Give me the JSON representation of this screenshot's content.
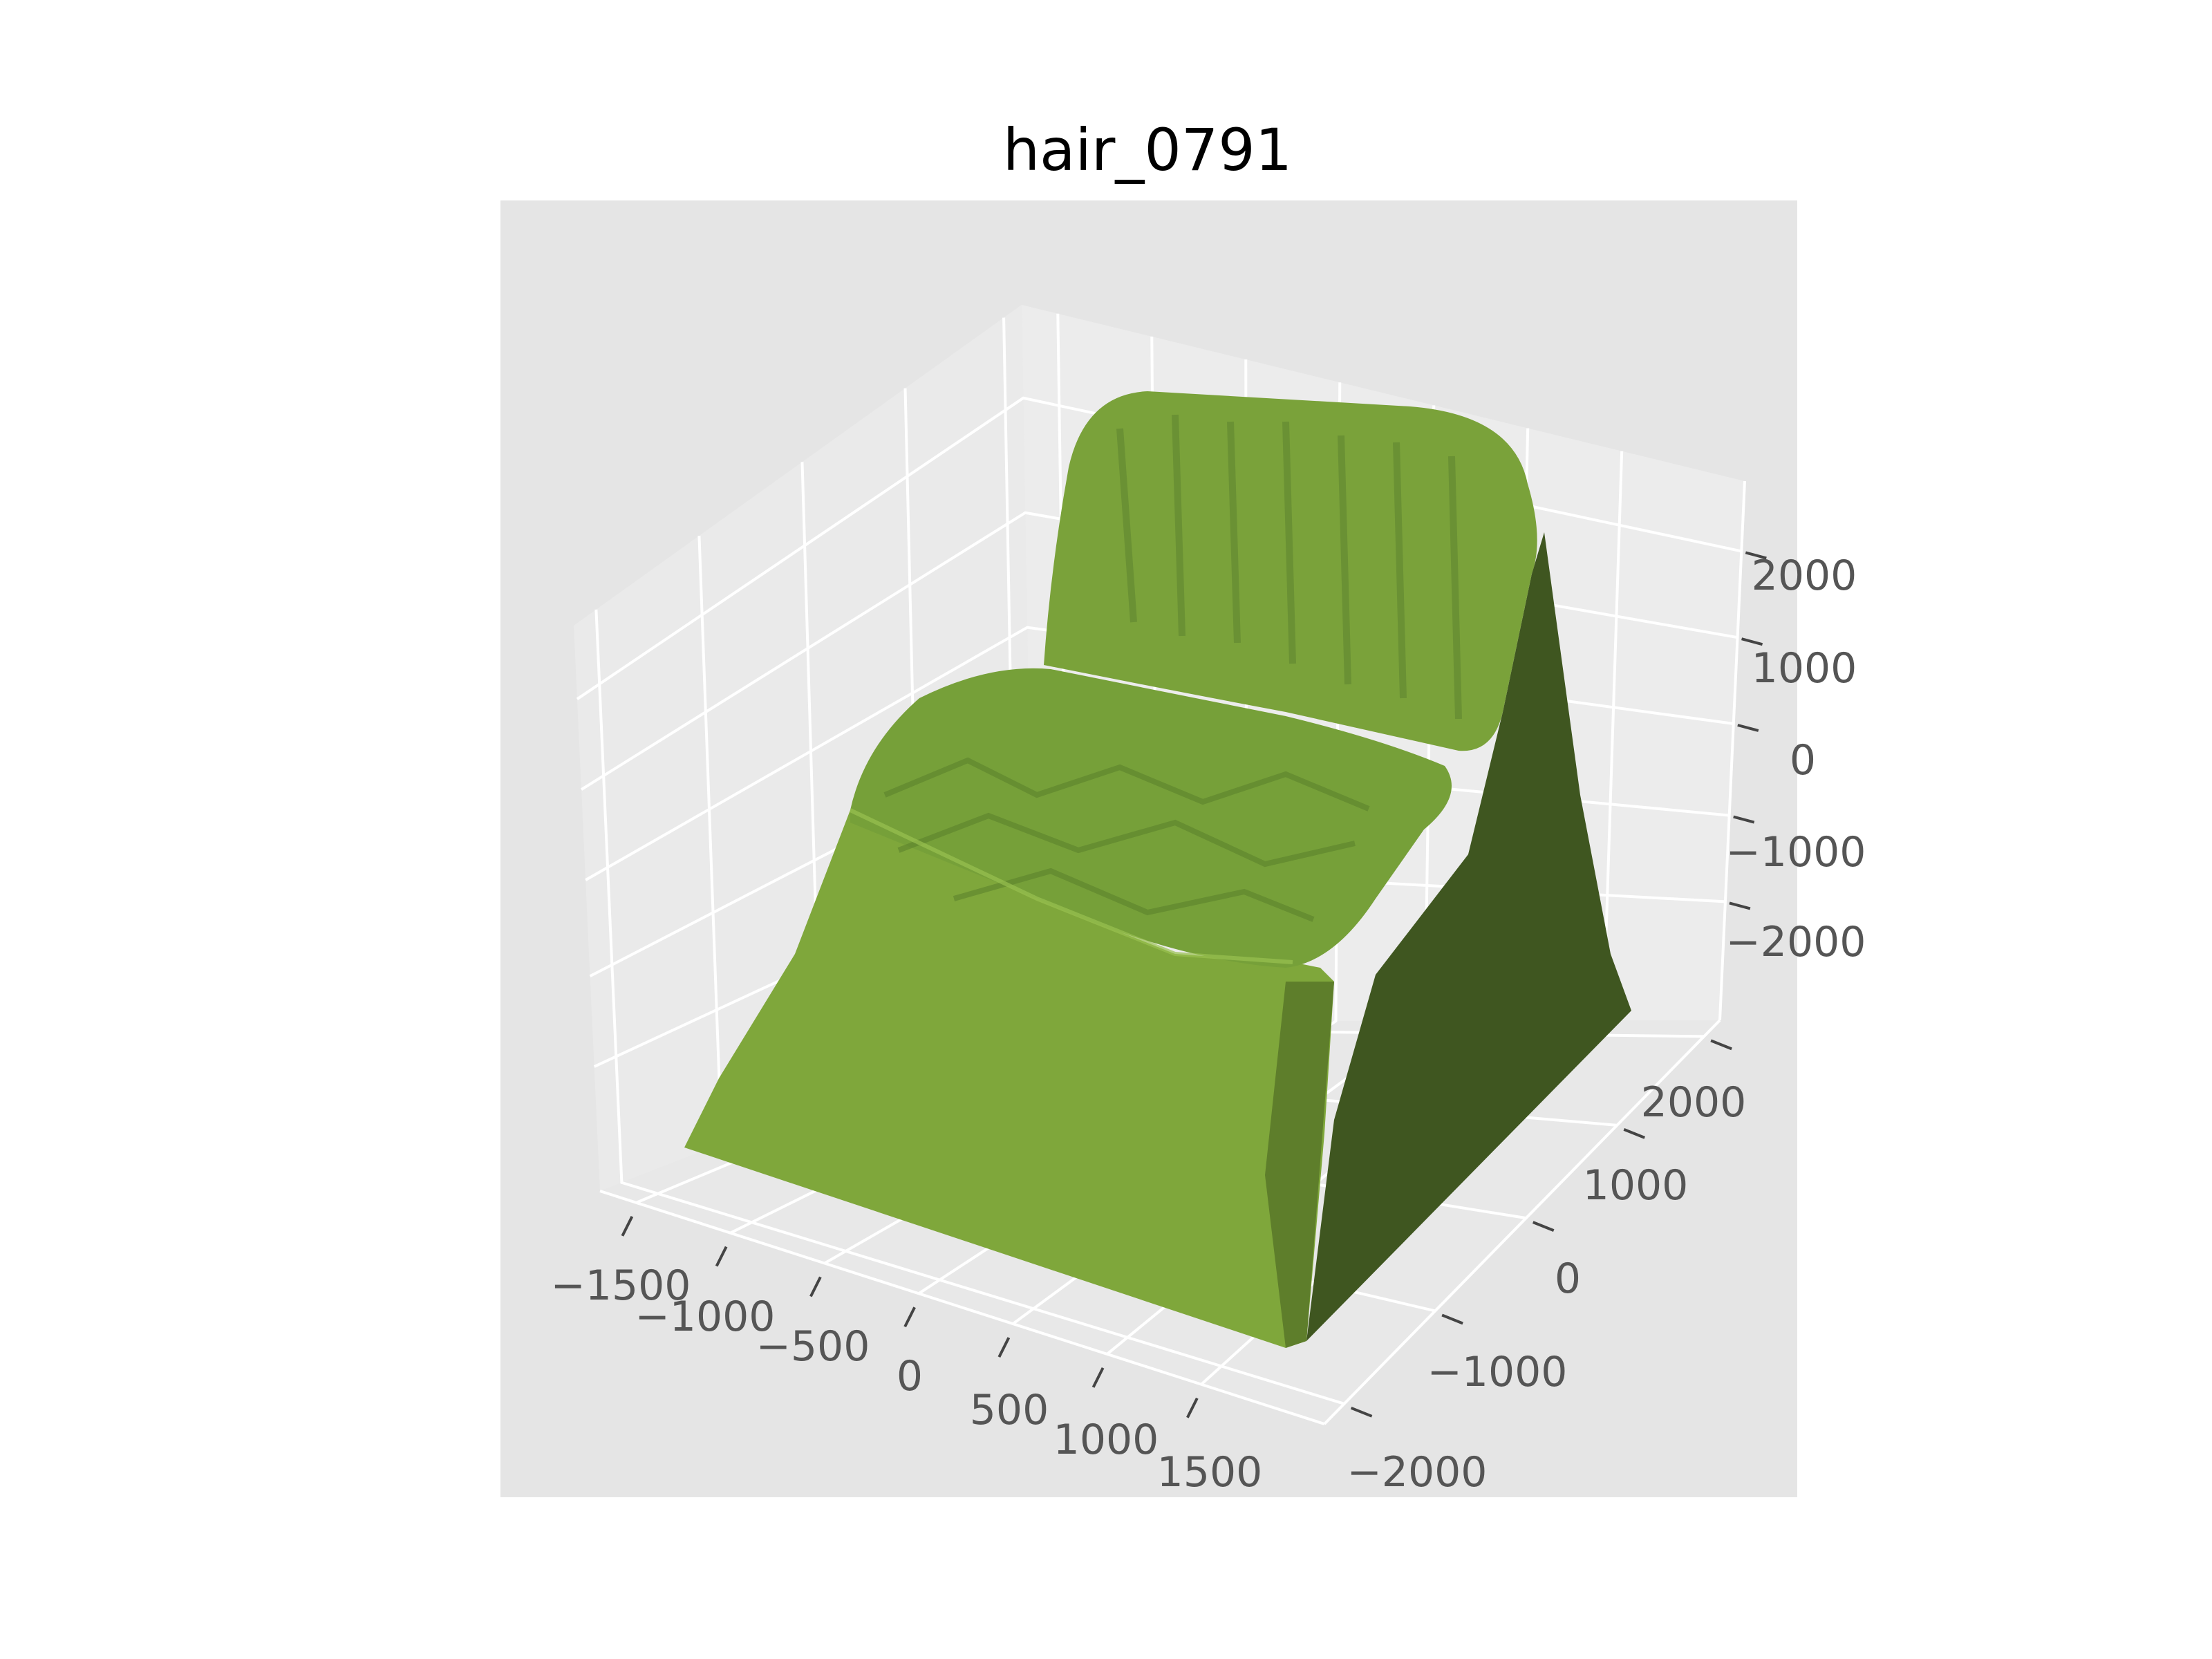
{
  "chart_data": {
    "type": "3d-mesh",
    "title": "hair_0791",
    "xlabel": "",
    "ylabel": "",
    "zlabel": "",
    "x_ticks": [
      "−1500",
      "−1000",
      "−500",
      "0",
      "500",
      "1000",
      "1500"
    ],
    "y_ticks": [
      "−2000",
      "−1000",
      "0",
      "1000",
      "2000"
    ],
    "z_ticks": [
      "−2000",
      "−1000",
      "0",
      "1000",
      "2000"
    ],
    "xlim": [
      -1800,
      1800
    ],
    "ylim": [
      -2400,
      2400
    ],
    "zlim": [
      -2800,
      2800
    ],
    "grid": true,
    "colors": {
      "mesh_light": "#80a83b",
      "mesh_dark": "#3f5620",
      "pane": "#e5e5e5",
      "grid": "#ffffff"
    }
  }
}
